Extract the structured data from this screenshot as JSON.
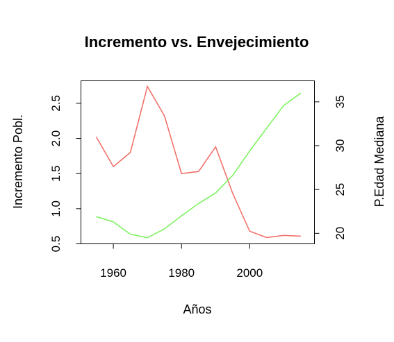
{
  "chart_data": {
    "type": "line",
    "title": "Incremento vs. Envejecimiento",
    "xlabel": "Años",
    "ylabel_left": "Incremento Pobl.",
    "ylabel_right": "P.Edad Mediana",
    "x": [
      1955,
      1960,
      1965,
      1970,
      1975,
      1980,
      1985,
      1990,
      1995,
      2000,
      2005,
      2010,
      2015
    ],
    "xlim": [
      1950.5,
      2019
    ],
    "x_ticks": [
      1960,
      1980,
      2000
    ],
    "ylim_left": [
      0.5,
      2.82
    ],
    "y_ticks_left": [
      0.5,
      1.0,
      1.5,
      2.0,
      2.5
    ],
    "ylim_right": [
      18.8,
      37.4
    ],
    "y_ticks_right": [
      20,
      25,
      30,
      35
    ],
    "grid": false,
    "legend": "none",
    "series": [
      {
        "axis": "left",
        "color": "#f2726b",
        "values": [
          2.02,
          1.6,
          1.8,
          2.74,
          2.32,
          1.5,
          1.53,
          1.88,
          1.22,
          0.68,
          0.59,
          0.62,
          0.61
        ]
      },
      {
        "axis": "right",
        "color": "#7ef25f",
        "values": [
          21.9,
          21.3,
          19.9,
          19.5,
          20.5,
          22.0,
          23.4,
          24.6,
          26.6,
          29.4,
          32.0,
          34.6,
          36.0
        ]
      }
    ]
  }
}
